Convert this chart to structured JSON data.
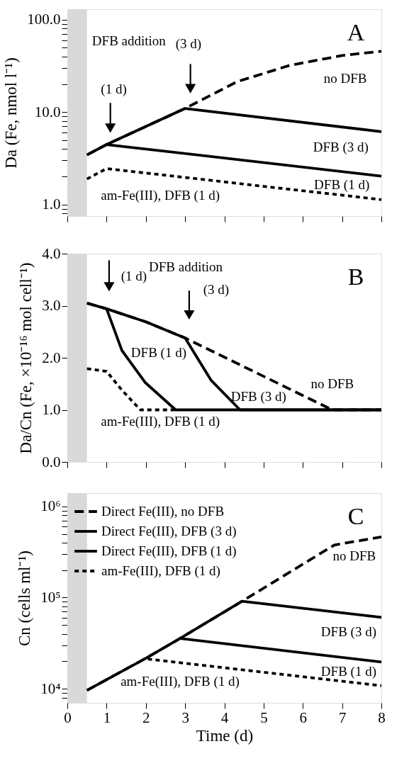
{
  "chart_data": [
    {
      "type": "line",
      "title": "A",
      "ylabel": "Da (Fe, nmol l⁻¹)",
      "log": "y",
      "xlim": [
        0,
        8
      ],
      "ylim": [
        0.75,
        130
      ],
      "xticks": [
        0,
        1,
        2,
        3,
        4,
        5,
        6,
        7,
        8
      ],
      "yticks": [
        {
          "value": 0.8,
          "label": null
        },
        {
          "value": 0.9,
          "label": null
        },
        {
          "value": 1,
          "label": "1.0"
        },
        {
          "value": 2,
          "label": null
        },
        {
          "value": 3,
          "label": null
        },
        {
          "value": 4,
          "label": null
        },
        {
          "value": 5,
          "label": null
        },
        {
          "value": 6,
          "label": null
        },
        {
          "value": 7,
          "label": null
        },
        {
          "value": 8,
          "label": null
        },
        {
          "value": 9,
          "label": null
        },
        {
          "value": 10,
          "label": "10.0"
        },
        {
          "value": 20,
          "label": null
        },
        {
          "value": 30,
          "label": null
        },
        {
          "value": 40,
          "label": null
        },
        {
          "value": 50,
          "label": null
        },
        {
          "value": 60,
          "label": null
        },
        {
          "value": 70,
          "label": null
        },
        {
          "value": 80,
          "label": null
        },
        {
          "value": 90,
          "label": null
        },
        {
          "value": 100,
          "label": "100.0"
        }
      ],
      "tick_labels": "y",
      "grid": false,
      "legend": false,
      "bands": [
        {
          "axis": "x",
          "from": 0,
          "to": 0.5,
          "color": "#d9d9d9"
        }
      ],
      "series": [
        {
          "color": "#000000",
          "line_style": "dashed",
          "x": [
            0.5,
            1,
            3,
            4.33,
            5.66,
            7,
            8
          ],
          "values": [
            3.45,
            4.46,
            10.97,
            21.4,
            32,
            41,
            45.6
          ]
        },
        {
          "color": "#000000",
          "line_style": "solid",
          "x": [
            0.5,
            1,
            3,
            8
          ],
          "values": [
            3.45,
            4.46,
            10.97,
            6.15
          ]
        },
        {
          "color": "#000000",
          "line_style": "solid",
          "x": [
            1,
            8
          ],
          "values": [
            4.46,
            2.03
          ]
        },
        {
          "color": "#000000",
          "line_style": "dashed",
          "x": [
            0.5,
            1,
            8
          ],
          "values": [
            1.89,
            2.45,
            1.13
          ]
        }
      ],
      "annotations": [
        "DFB addition",
        "(1 d)",
        "(3 d)",
        "no DFB",
        "DFB (3 d)",
        "DFB (1 d)",
        "am-Fe(III), DFB (1 d)"
      ]
    },
    {
      "type": "line",
      "title": "B",
      "ylabel": "Da/Cn (Fe, ×10⁻¹⁶ mol cell⁻¹)",
      "xlim": [
        0,
        8
      ],
      "ylim": [
        0,
        4.0
      ],
      "xticks": [
        0,
        1,
        2,
        3,
        4,
        5,
        6,
        7,
        8
      ],
      "yticks": [
        {
          "value": 0,
          "label": "0.0"
        },
        {
          "value": 1,
          "label": "1.0"
        },
        {
          "value": 2,
          "label": "2.0"
        },
        {
          "value": 3,
          "label": "3.0"
        },
        {
          "value": 4,
          "label": "4.0"
        }
      ],
      "tick_labels": "y",
      "grid": false,
      "legend": false,
      "bands": [
        {
          "axis": "x",
          "from": 0,
          "to": 0.5,
          "color": "#d9d9d9"
        }
      ],
      "series": [
        {
          "color": "#000000",
          "line_style": "dashed",
          "x": [
            0.5,
            1,
            2,
            3,
            6.75,
            8
          ],
          "values": [
            3.05,
            2.94,
            2.69,
            2.38,
            1.0,
            1.0
          ]
        },
        {
          "color": "#000000",
          "line_style": "solid",
          "x": [
            0.5,
            1,
            2,
            3,
            3.66,
            4.4,
            8
          ],
          "values": [
            3.05,
            2.94,
            2.69,
            2.38,
            1.57,
            1.0,
            1.0
          ]
        },
        {
          "color": "#000000",
          "line_style": "solid",
          "x": [
            1,
            1.39,
            1.99,
            2.76,
            8
          ],
          "values": [
            2.94,
            2.14,
            1.52,
            1.0,
            1.0
          ]
        },
        {
          "color": "#000000",
          "line_style": "dashed",
          "x": [
            0.5,
            1,
            1.39,
            1.86,
            2.76
          ],
          "values": [
            1.79,
            1.74,
            1.38,
            1.0,
            1.0
          ]
        }
      ],
      "annotations": [
        "DFB addition",
        "(1 d)",
        "(3 d)",
        "DFB (1 d)",
        "DFB (3 d)",
        "no DFB",
        "am-Fe(III), DFB (1 d)"
      ]
    },
    {
      "type": "line",
      "title": "C",
      "xlabel": "Time (d)",
      "ylabel": "Cn (cells ml⁻¹)",
      "log": "y",
      "xlim": [
        0,
        8
      ],
      "ylim": [
        7000,
        1400000
      ],
      "xticks": [
        0,
        1,
        2,
        3,
        4,
        5,
        6,
        7,
        8
      ],
      "yticks": [
        {
          "value": 8000,
          "label": null
        },
        {
          "value": 9000,
          "label": null
        },
        {
          "value": 10000,
          "label": "10⁴"
        },
        {
          "value": 20000,
          "label": null
        },
        {
          "value": 30000,
          "label": null
        },
        {
          "value": 40000,
          "label": null
        },
        {
          "value": 50000,
          "label": null
        },
        {
          "value": 60000,
          "label": null
        },
        {
          "value": 70000,
          "label": null
        },
        {
          "value": 80000,
          "label": null
        },
        {
          "value": 90000,
          "label": null
        },
        {
          "value": 100000,
          "label": "10⁵"
        },
        {
          "value": 200000,
          "label": null
        },
        {
          "value": 300000,
          "label": null
        },
        {
          "value": 400000,
          "label": null
        },
        {
          "value": 500000,
          "label": null
        },
        {
          "value": 600000,
          "label": null
        },
        {
          "value": 700000,
          "label": null
        },
        {
          "value": 800000,
          "label": null
        },
        {
          "value": 900000,
          "label": null
        },
        {
          "value": 1000000,
          "label": "10⁶"
        }
      ],
      "grid": false,
      "legend": "top left",
      "bands": [
        {
          "axis": "x",
          "from": 0,
          "to": 0.5,
          "color": "#d9d9d9"
        }
      ],
      "series": [
        {
          "name": "Direct Fe(III), no DFB",
          "color": "#000000",
          "line_style": "dashed",
          "x": [
            0.5,
            2,
            2.87,
            4.45,
            6.8,
            8
          ],
          "values": [
            9600,
            21600,
            35600,
            91000,
            377000,
            463000
          ]
        },
        {
          "name": "Direct Fe(III), DFB (3 d)",
          "color": "#000000",
          "line_style": "solid",
          "x": [
            0.5,
            2,
            2.87,
            4.45,
            8
          ],
          "values": [
            9600,
            21600,
            35600,
            91000,
            60700
          ]
        },
        {
          "name": "Direct Fe(III), DFB (1 d)",
          "color": "#000000",
          "line_style": "solid",
          "x": [
            2.87,
            8
          ],
          "values": [
            35600,
            19600
          ]
        },
        {
          "name": "am-Fe(III), DFB (1 d)",
          "color": "#000000",
          "line_style": "dashed",
          "x": [
            2.05,
            8
          ],
          "values": [
            21200,
            10800
          ]
        }
      ],
      "annotations": [
        "no DFB",
        "DFB (3 d)",
        "DFB (1 d)",
        "am-Fe(III), DFB (1 d)"
      ]
    }
  ]
}
